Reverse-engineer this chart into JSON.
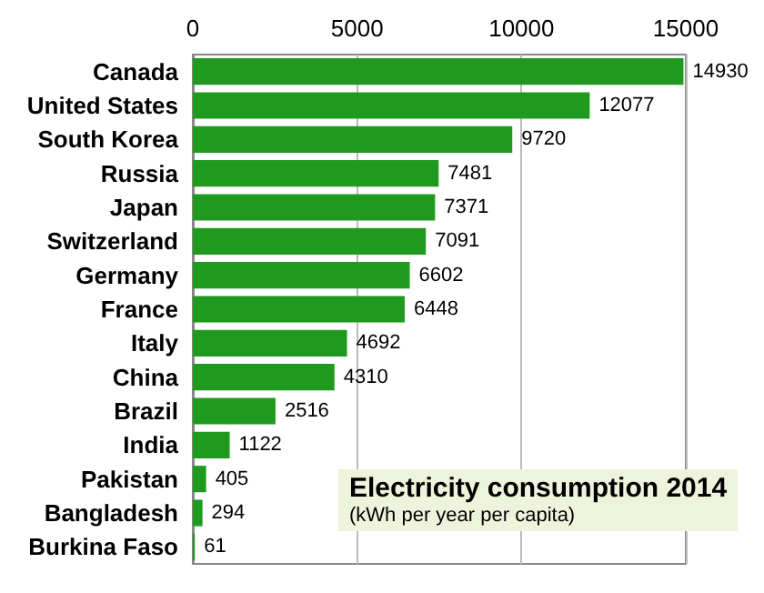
{
  "chart_data": {
    "type": "bar",
    "orientation": "horizontal",
    "title": "Electricity consumption 2014",
    "subtitle": "(kWh per year per capita)",
    "categories": [
      "Canada",
      "United States",
      "South Korea",
      "Russia",
      "Japan",
      "Switzerland",
      "Germany",
      "France",
      "Italy",
      "China",
      "Brazil",
      "India",
      "Pakistan",
      "Bangladesh",
      "Burkina Faso"
    ],
    "values": [
      14930,
      12077,
      9720,
      7481,
      7371,
      7091,
      6602,
      6448,
      4692,
      4310,
      2516,
      1122,
      405,
      294,
      61
    ],
    "color": "#1f9a1f",
    "xlim": [
      0,
      15000
    ],
    "xticks": [
      0,
      5000,
      10000,
      15000
    ],
    "grid": "x",
    "data_labels": true
  }
}
